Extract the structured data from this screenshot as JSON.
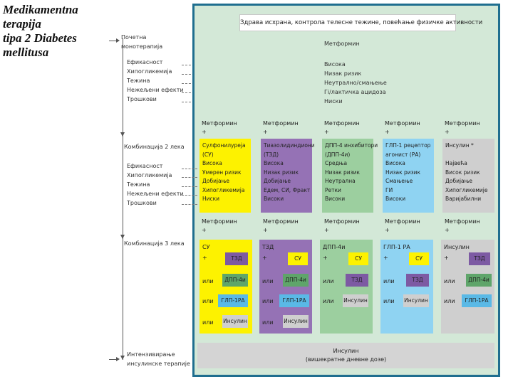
{
  "title_lines": [
    "Medikamentna",
    "terapija",
    "tipa 2 Diabetes",
    "mellitusa"
  ],
  "left_labels": {
    "initial": [
      "Почетна",
      "монотерапија"
    ],
    "criteria": [
      "Ефикасност",
      "Хипогликемија",
      "Тежина",
      "Нежељени ефекти",
      "Трошкови"
    ],
    "combo2": "Комбинација 2 лека",
    "combo3": "Комбинација 3 лека",
    "intensify": [
      "Интензивирање",
      "инсулинске терапије"
    ]
  },
  "lifestyle": "Здрава исхрана, контрола телесне тежине, повећање физичке активности",
  "monotherapy": {
    "drug": "Метформин",
    "properties": [
      "Висока",
      "Низак ризик",
      "Неутрално/смањење",
      "Гi/лактичка ацидоза",
      "Ниски"
    ]
  },
  "combo2": {
    "header_drug": "Метформин",
    "plus": "+",
    "columns": [
      {
        "name_lines": [
          "Сулфонилуреја",
          "(СУ)"
        ],
        "properties": [
          "Висока",
          "Умерен ризик",
          "Добијање",
          "Хипогликемија",
          "Ниски"
        ],
        "color": "#fdf200"
      },
      {
        "name_lines": [
          "Тиазолидиндиони",
          "(ТЗД)"
        ],
        "properties": [
          "Висока",
          "Низак ризик",
          "Добијање",
          "Едем, СИ, Фракт",
          "Високи"
        ],
        "color": "#9572b5"
      },
      {
        "name_lines": [
          "ДПП-4 инхибитори",
          "(ДПП-4и)"
        ],
        "properties": [
          "Средња",
          "Низак ризик",
          "Неутрална",
          "Ретки",
          "Високи"
        ],
        "color": "#9ccf9f"
      },
      {
        "name_lines": [
          "ГЛП-1 рецептор",
          "агонист (РА)"
        ],
        "properties": [
          "Висока",
          "Низак ризик",
          "Смањење",
          "ГИ",
          "Високи"
        ],
        "color": "#8fd3f2"
      },
      {
        "name_lines": [
          "Инсулин *"
        ],
        "properties": [
          "Највећа",
          "Висок ризик",
          "Добијање",
          "Хипогликемије",
          "Варијабилни"
        ],
        "color": "#cfcfcf"
      }
    ]
  },
  "combo3": {
    "header_drug": "Метформин",
    "plus": "+",
    "or": "или",
    "columns": [
      {
        "base": "СУ",
        "options": [
          "ТЗД",
          "ДПП-4и",
          "ГЛП-1РА",
          "Инсулин"
        ]
      },
      {
        "base": "ТЗД",
        "options": [
          "СУ",
          "ДПП-4и",
          "ГЛП-1РА",
          "Инсулин"
        ]
      },
      {
        "base": "ДПП-4и",
        "options": [
          "СУ",
          "ТЗД",
          "Инсулин"
        ]
      },
      {
        "base": "ГЛП-1 РА",
        "options": [
          "СУ",
          "ТЗД",
          "Инсулин"
        ]
      },
      {
        "base": "Инсулин",
        "options": [
          "ТЗД",
          "ДПП-4и",
          "ГЛП-1РА"
        ]
      }
    ]
  },
  "final": [
    "Инсулин",
    "(вишекратне дневне дозе)"
  ],
  "colors": {
    "panel_bg": "#d3e8d7",
    "panel_border": "#1f6e8f",
    "su": "#fdf200",
    "tzd": "#9572b5",
    "dpp4": "#9ccf9f",
    "glp1": "#8fd3f2",
    "insulin": "#cfcfcf",
    "tzd_chip": "#7d5aa3",
    "dpp4_chip": "#5fa56a",
    "glp1_chip": "#5ab9e6"
  }
}
